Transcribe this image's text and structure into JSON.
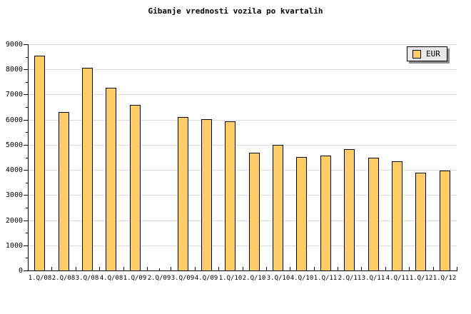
{
  "chart_data": {
    "type": "bar",
    "title": "Gibanje vrednosti vozila po kvartalih",
    "categories": [
      "1.Q/08",
      "2.Q/08",
      "3.Q/08",
      "4.Q/08",
      "1.Q/09",
      "2.Q/09",
      "3.Q/09",
      "4.Q/09",
      "1.Q/10",
      "2.Q/10",
      "3.Q/10",
      "4.Q/10",
      "1.Q/11",
      "2.Q/11",
      "3.Q/11",
      "4.Q/11",
      "1.Q/12",
      "1.Q/12"
    ],
    "series": [
      {
        "name": "EUR",
        "values": [
          8550,
          6300,
          8060,
          7260,
          6590,
          null,
          6100,
          6030,
          5930,
          4680,
          5010,
          4510,
          4580,
          4840,
          4500,
          4330,
          3880,
          3970
        ]
      }
    ],
    "ylim": [
      0,
      9000
    ],
    "ytick_step": 1000,
    "yminor_step": 500,
    "ytick_labels": [
      "0",
      "1000",
      "2000",
      "3000",
      "4000",
      "5000",
      "6000",
      "7000",
      "8000",
      "9000"
    ],
    "grid": true,
    "legend": {
      "label": "EUR",
      "position": "top-right"
    },
    "colors": {
      "background": "#FFFFFF",
      "bar_fill": "#FFCC66",
      "bar_border": "#000000",
      "gridline": "#DCDCDC",
      "axis": "#000000",
      "text": "#000000",
      "legend_bg": "#E8E8E8",
      "legend_shadow": "#8C8C8C"
    }
  }
}
